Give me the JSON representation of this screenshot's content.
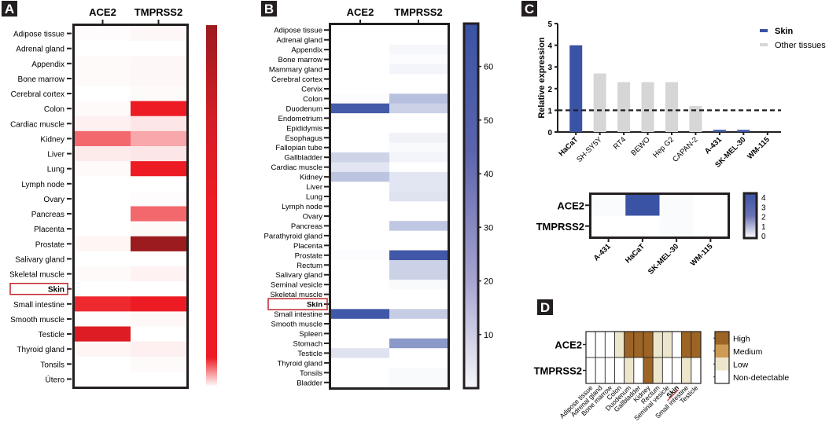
{
  "chart_data": [
    {
      "panel": "A",
      "type": "heatmap",
      "columns": [
        "ACE2",
        "TMPRSS2"
      ],
      "rows": [
        "Adipose tissue",
        "Adrenal gland",
        "Appendix",
        "Bone marrow",
        "Cerebral cortex",
        "Colon",
        "Cardiac muscle",
        "Kidney",
        "Liver",
        "Lung",
        "Lymph node",
        "Ovary",
        "Pancreas",
        "Placenta",
        "Prostate",
        "Salivary gland",
        "Skeletal muscle",
        "Skin",
        "Small intestine",
        "Smooth muscle",
        "Testicle",
        "Thyroid gland",
        "Tonsils",
        "Útero"
      ],
      "highlighted_row": "Skin",
      "values": [
        [
          0.01,
          0.03
        ],
        [
          0.0,
          0.0
        ],
        [
          0.02,
          0.03
        ],
        [
          0.02,
          0.03
        ],
        [
          0.0,
          0.02
        ],
        [
          0.02,
          0.9
        ],
        [
          0.06,
          0.1
        ],
        [
          0.6,
          0.35
        ],
        [
          0.08,
          0.1
        ],
        [
          0.02,
          0.9
        ],
        [
          0.0,
          0.0
        ],
        [
          0.0,
          0.01
        ],
        [
          0.0,
          0.6
        ],
        [
          0.0,
          0.02
        ],
        [
          0.04,
          1.0
        ],
        [
          0.0,
          0.0
        ],
        [
          0.02,
          0.05
        ],
        [
          0.0,
          0.0
        ],
        [
          0.85,
          0.9
        ],
        [
          0.01,
          0.03
        ],
        [
          0.92,
          0.0
        ],
        [
          0.04,
          0.06
        ],
        [
          0.0,
          0.02
        ],
        [
          0.0,
          0.0
        ]
      ],
      "colorbar": {
        "low_color": "#ffffff",
        "mid_color": "#ed1c24",
        "high_color": "#9b1b1e",
        "tick_labels": []
      }
    },
    {
      "panel": "B",
      "type": "heatmap",
      "columns": [
        "ACE2",
        "TMPRSS2"
      ],
      "rows": [
        "Adipose tissue",
        "Adrenal gland",
        "Appendix",
        "Bone marrow",
        "Mammary gland",
        "Cerebral cortex",
        "Cervix",
        "Colon",
        "Duodenum",
        "Endometrium",
        "Epididymis",
        "Esophagus",
        "Fallopian tube",
        "Gallbladder",
        "Cardiac muscle",
        "Kidney",
        "Liver",
        "Lung",
        "Lymph node",
        "Ovary",
        "Pancreas",
        "Parathyroid gland",
        "Placenta",
        "Prostate",
        "Rectum",
        "Salivary gland",
        "Seminal vesicle",
        "Skeletal muscle",
        "Skin",
        "Small intestine",
        "Smooth muscle",
        "Spleen",
        "Stomach",
        "Testicle",
        "Thyroid gland",
        "Tonsils",
        "Bladder"
      ],
      "highlighted_row": "Skin",
      "values": [
        [
          0,
          0
        ],
        [
          0,
          0
        ],
        [
          0,
          3
        ],
        [
          0,
          1
        ],
        [
          0,
          4
        ],
        [
          0,
          0
        ],
        [
          0,
          0
        ],
        [
          1,
          25
        ],
        [
          65,
          18
        ],
        [
          0,
          0
        ],
        [
          0,
          0
        ],
        [
          0,
          5
        ],
        [
          0,
          2
        ],
        [
          17,
          4
        ],
        [
          10,
          0
        ],
        [
          23,
          10
        ],
        [
          0,
          10
        ],
        [
          0,
          11
        ],
        [
          0,
          0
        ],
        [
          0,
          0
        ],
        [
          0,
          22
        ],
        [
          0,
          0
        ],
        [
          0,
          0
        ],
        [
          1,
          66
        ],
        [
          0,
          18
        ],
        [
          0,
          18
        ],
        [
          0,
          2
        ],
        [
          0,
          0
        ],
        [
          0,
          0
        ],
        [
          66,
          20
        ],
        [
          0,
          0
        ],
        [
          0,
          0
        ],
        [
          0,
          40
        ],
        [
          11,
          0
        ],
        [
          0,
          0
        ],
        [
          0,
          2
        ],
        [
          0,
          2
        ]
      ],
      "colorbar": {
        "min": 0,
        "max": 68,
        "ticks": [
          10,
          20,
          30,
          40,
          50,
          60
        ],
        "low_color": "#ffffff",
        "high_color": "#3a53a4"
      }
    },
    {
      "panel": "C",
      "type": "bar",
      "title": "",
      "xlabel": "",
      "ylabel": "Relative expression",
      "ylim": [
        0,
        5
      ],
      "yticks": [
        0,
        1,
        2,
        3,
        4,
        5
      ],
      "categories": [
        "HaCaT",
        "SH-SY5Y",
        "RT4",
        "BEWO",
        "Hep G2",
        "CAPAN-2",
        "A-431",
        "SK-MEL-30",
        "WM-115"
      ],
      "bold_categories": [
        "HaCaT",
        "A-431",
        "SK-MEL-30",
        "WM-115"
      ],
      "values": [
        4.0,
        2.7,
        2.3,
        2.3,
        2.3,
        1.2,
        0.1,
        0.1,
        0.0
      ],
      "groups": [
        "Skin",
        "Other tissues",
        "Other tissues",
        "Other tissues",
        "Other tissues",
        "Other tissues",
        "Skin",
        "Skin",
        "Skin"
      ],
      "reference_line": 1,
      "legend": [
        {
          "label": "Skin",
          "color": "#3a53a4"
        },
        {
          "label": "Other tissues",
          "color": "#d6d6d6"
        }
      ],
      "legend_position": "top-right"
    },
    {
      "panel": "C-heatmap",
      "type": "heatmap",
      "rows": [
        "ACE2",
        "TMPRSS2"
      ],
      "columns": [
        "A-431",
        "HaCaT",
        "SK-MEL-30",
        "WM-115"
      ],
      "values": [
        [
          0.1,
          4.0,
          0.1,
          0.0
        ],
        [
          0.0,
          0.0,
          0.1,
          0.0
        ]
      ],
      "colorbar": {
        "min": 0,
        "max": 4,
        "ticks": [
          0,
          1,
          2,
          3,
          4
        ],
        "low_color": "#ffffff",
        "high_color": "#3a53a4"
      }
    },
    {
      "panel": "D",
      "type": "heatmap",
      "rows": [
        "ACE2",
        "TMPRSS2"
      ],
      "columns": [
        "Adipose tissue",
        "Adrenal gland",
        "Bone marrow",
        "Colon",
        "Duodenum",
        "Gallbladder",
        "Kidney",
        "Rectum",
        "Seminal vesicle",
        "Skin",
        "Small intestine",
        "Testicle"
      ],
      "highlighted_column": "Skin",
      "values": [
        [
          "Non-detectable",
          "Non-detectable",
          "Non-detectable",
          "Low",
          "High",
          "High",
          "High",
          "Low",
          "Low",
          "Non-detectable",
          "High",
          "High"
        ],
        [
          "Non-detectable",
          "Non-detectable",
          "Non-detectable",
          "Non-detectable",
          "Low",
          "Non-detectable",
          "High",
          "Low",
          "Non-detectable",
          "Non-detectable",
          "Low",
          "Non-detectable"
        ]
      ],
      "legend": [
        {
          "label": "High",
          "color": "#9c6425"
        },
        {
          "label": "Medium",
          "color": "#cf9a54"
        },
        {
          "label": "Low",
          "color": "#ece6cc"
        },
        {
          "label": "Non-detectable",
          "color": "#ffffff"
        }
      ]
    }
  ],
  "panel_labels": [
    "A",
    "B",
    "C",
    "D"
  ]
}
